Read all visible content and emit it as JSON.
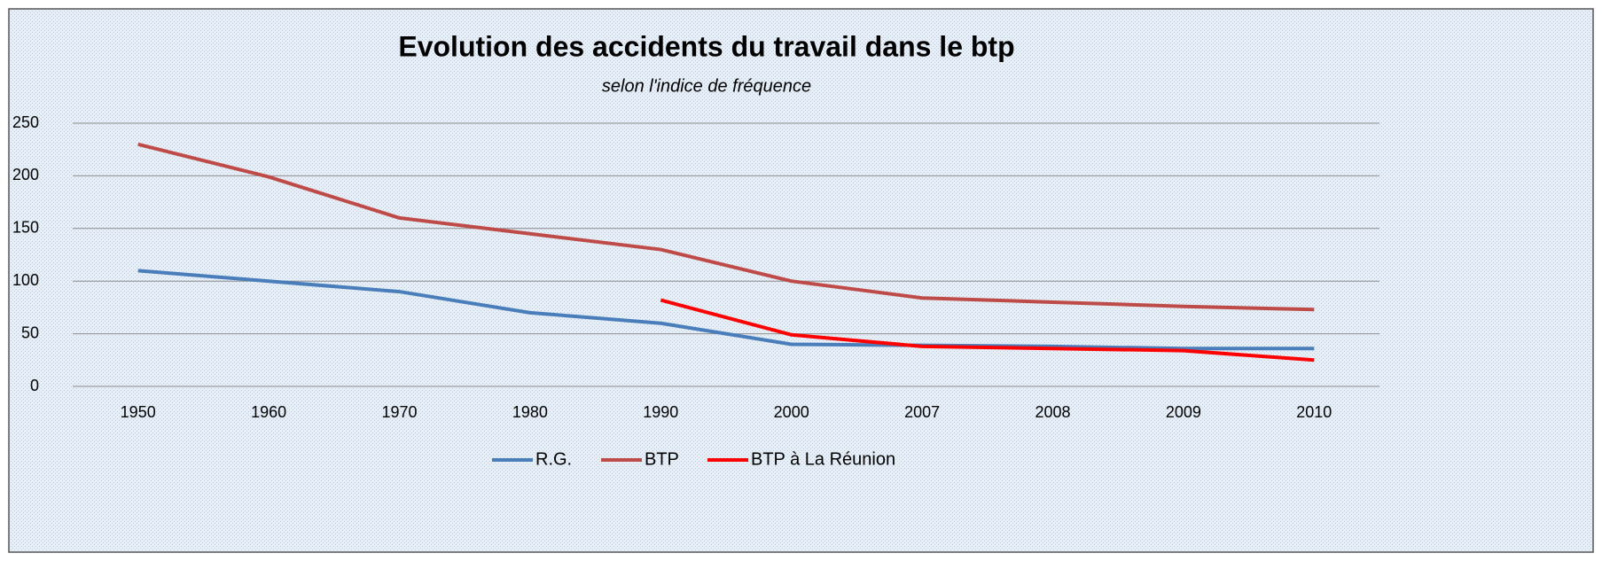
{
  "chart_data": {
    "type": "line",
    "title": "Evolution des accidents du travail dans le btp",
    "subtitle": "selon l'indice de fréquence",
    "categories": [
      "1950",
      "1960",
      "1970",
      "1980",
      "1990",
      "2000",
      "2007",
      "2008",
      "2009",
      "2010"
    ],
    "series": [
      {
        "name": "R.G.",
        "color": "#4a7ebb",
        "values": [
          110,
          100,
          90,
          70,
          60,
          40,
          39,
          38,
          36,
          36
        ]
      },
      {
        "name": "BTP",
        "color": "#be4b48",
        "values": [
          230,
          199,
          160,
          145,
          130,
          100,
          84,
          80,
          76,
          73
        ]
      },
      {
        "name": "BTP à La Réunion",
        "color": "#ff0000",
        "values": [
          null,
          null,
          null,
          null,
          82,
          49,
          38,
          36,
          34,
          25
        ]
      }
    ],
    "ylim": [
      0,
      250
    ],
    "yticks": [
      0,
      50,
      100,
      150,
      200,
      250
    ],
    "grid": true,
    "legend": "bottom"
  }
}
